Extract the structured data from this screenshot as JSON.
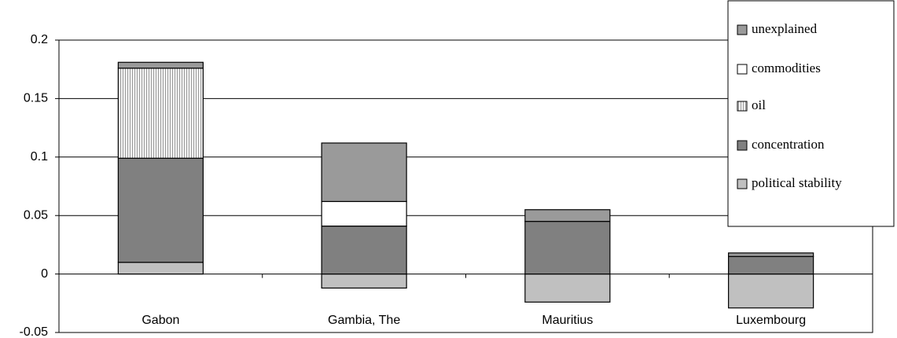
{
  "chart_data": {
    "type": "stacked_bar",
    "categories": [
      "Gabon",
      "Gambia, The",
      "Mauritius",
      "Luxembourg"
    ],
    "series": [
      {
        "name": "political stability",
        "color": "#c0c0c0",
        "values": [
          0.01,
          -0.012,
          -0.024,
          -0.029
        ]
      },
      {
        "name": "concentration",
        "color": "#808080",
        "values": [
          0.089,
          0.041,
          0.045,
          0.015
        ]
      },
      {
        "name": "oil",
        "color": "#e4e4e4",
        "hatch": "vertical",
        "values": [
          0.077,
          0,
          0,
          0
        ]
      },
      {
        "name": "commodities",
        "color": "#ffffff",
        "values": [
          0,
          0.021,
          0,
          0
        ]
      },
      {
        "name": "unexplained",
        "color": "#9a9a9a",
        "values": [
          0.005,
          0.05,
          0.01,
          0.003
        ]
      }
    ],
    "ylim": [
      -0.05,
      0.2
    ],
    "yticks": [
      -0.05,
      0,
      0.05,
      0.1,
      0.15,
      0.2
    ],
    "grid": true,
    "legend": "top-right"
  }
}
